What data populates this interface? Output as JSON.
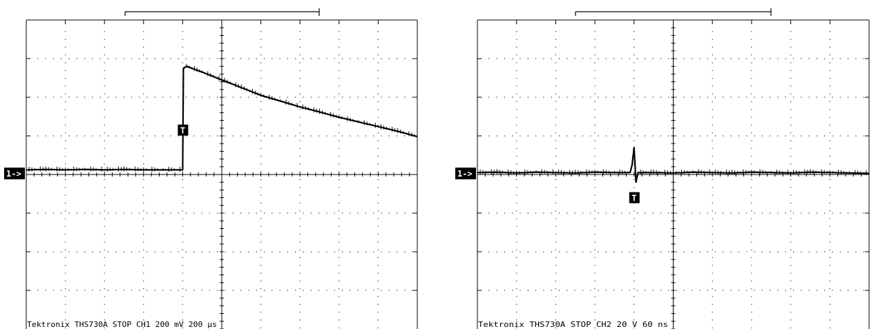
{
  "chart_data": [
    {
      "type": "line",
      "title": "",
      "xlabel": "",
      "ylabel": "",
      "channel_marker": "1->",
      "trigger_marker": "T",
      "status_text": "Tektronix THS730A STOP  CH1 200 mV   200 µs",
      "grid": true,
      "divisions": {
        "x": 10,
        "y": 8
      },
      "xlim": [
        0,
        10
      ],
      "ylim": [
        -4,
        4
      ],
      "trigger": {
        "x": 4,
        "y": 1.15
      },
      "series": [
        {
          "x": [
            0,
            0.5,
            1,
            1.5,
            2,
            2.5,
            3,
            3.5,
            4,
            4.02,
            4.1,
            4.5,
            5,
            5.5,
            6,
            6.5,
            7,
            7.5,
            8,
            8.5,
            9,
            9.5,
            10
          ],
          "y": [
            0.12,
            0.13,
            0.12,
            0.13,
            0.12,
            0.13,
            0.12,
            0.12,
            0.12,
            2.75,
            2.8,
            2.65,
            2.45,
            2.25,
            2.05,
            1.9,
            1.75,
            1.62,
            1.48,
            1.36,
            1.24,
            1.12,
            0.98
          ]
        }
      ]
    },
    {
      "type": "line",
      "title": "",
      "xlabel": "",
      "ylabel": "",
      "channel_marker": "1->",
      "trigger_marker": "T",
      "status_text": "Tektronix THS730A STOP  CH2  20 V    60 ns",
      "grid": true,
      "divisions": {
        "x": 10,
        "y": 8
      },
      "xlim": [
        0,
        10
      ],
      "ylim": [
        -4,
        4
      ],
      "trigger": {
        "x": 4,
        "y": -0.6
      },
      "series": [
        {
          "x": [
            0,
            0.5,
            1,
            1.5,
            2,
            2.5,
            3,
            3.5,
            3.9,
            3.95,
            4,
            4.05,
            4.1,
            4.5,
            5,
            5.5,
            6,
            6.5,
            7,
            7.5,
            8,
            8.5,
            9,
            9.5,
            10
          ],
          "y": [
            0.05,
            0.06,
            0.04,
            0.06,
            0.05,
            0.04,
            0.06,
            0.05,
            0.05,
            0.25,
            0.7,
            -0.2,
            0.05,
            0.05,
            0.04,
            0.06,
            0.05,
            0.04,
            0.06,
            0.05,
            0.04,
            0.06,
            0.05,
            0.04,
            0.03
          ]
        }
      ]
    }
  ]
}
